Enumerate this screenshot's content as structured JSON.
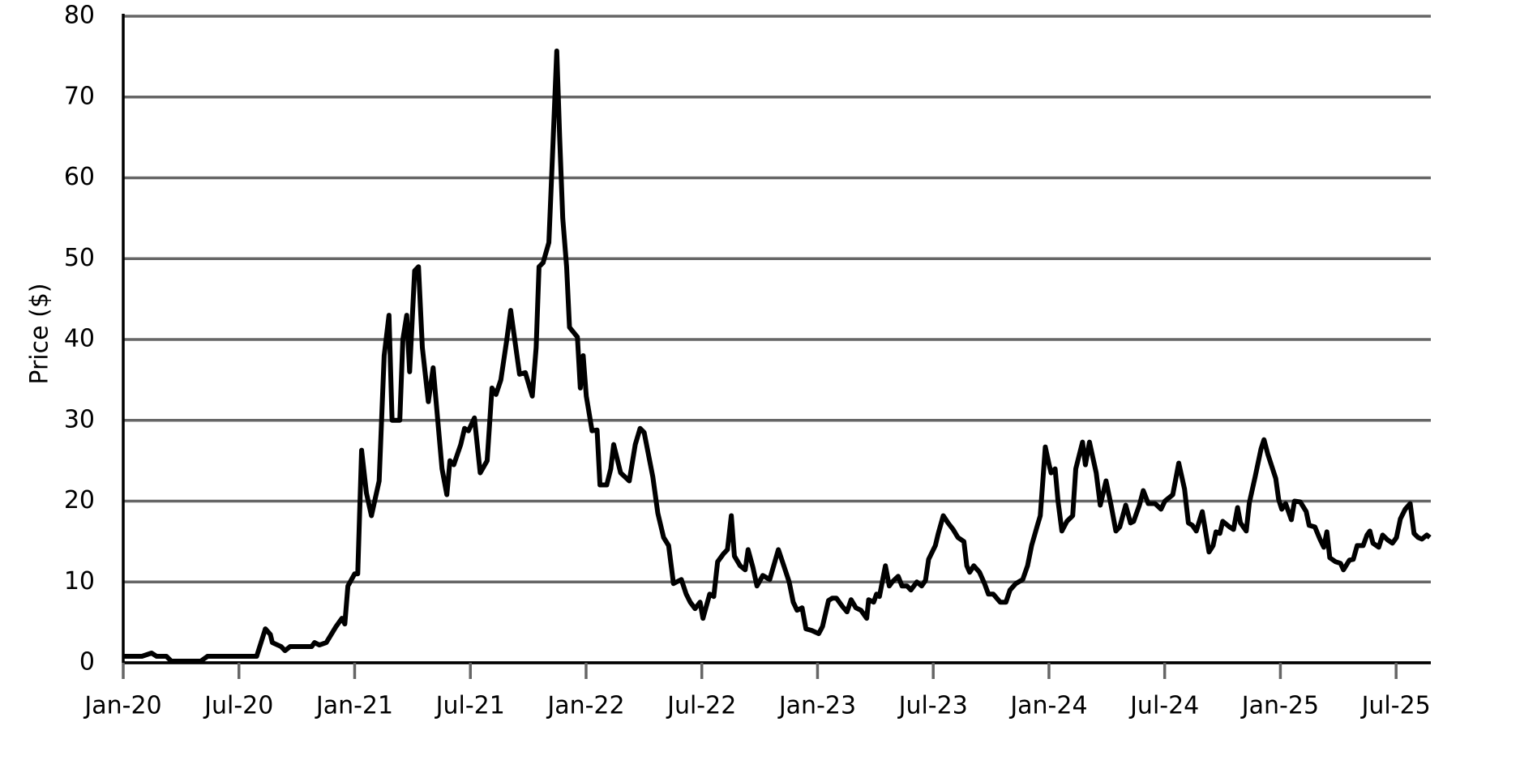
{
  "chart_data": {
    "type": "line",
    "y_label": "Price ($)",
    "xlim": [
      0,
      67.8
    ],
    "ylim": [
      0,
      80
    ],
    "xticks": [
      {
        "value": 0,
        "label": "Jan-20"
      },
      {
        "value": 6,
        "label": "Jul-20"
      },
      {
        "value": 12,
        "label": "Jan-21"
      },
      {
        "value": 18,
        "label": "Jul-21"
      },
      {
        "value": 24,
        "label": "Jan-22"
      },
      {
        "value": 30,
        "label": "Jul-22"
      },
      {
        "value": 36,
        "label": "Jan-23"
      },
      {
        "value": 42,
        "label": "Jul-23"
      },
      {
        "value": 48,
        "label": "Jan-24"
      },
      {
        "value": 54,
        "label": "Jul-24"
      },
      {
        "value": 60,
        "label": "Jan-25"
      },
      {
        "value": 66,
        "label": "Jul-25"
      }
    ],
    "yticks": [
      0,
      10,
      20,
      30,
      40,
      50,
      60,
      70,
      80
    ],
    "grid": true,
    "x": [
      0,
      0.97,
      1.47,
      1.73,
      2.24,
      2.49,
      4.02,
      4.37,
      6.92,
      7.37,
      7.63,
      7.73,
      8.19,
      8.39,
      8.65,
      9.77,
      9.92,
      10.17,
      10.53,
      11.04,
      11.34,
      11.49,
      11.65,
      12.0,
      12.16,
      12.36,
      12.61,
      12.87,
      13.27,
      13.53,
      13.78,
      13.94,
      14.34,
      14.5,
      14.7,
      14.85,
      15.11,
      15.31,
      15.51,
      15.82,
      16.07,
      16.53,
      16.78,
      16.94,
      17.14,
      17.5,
      17.7,
      17.9,
      18.21,
      18.51,
      18.87,
      19.12,
      19.33,
      19.58,
      19.89,
      20.09,
      20.55,
      20.85,
      21.21,
      21.41,
      21.56,
      21.77,
      22.07,
      22.28,
      22.48,
      22.63,
      22.79,
      22.99,
      23.14,
      23.55,
      23.7,
      23.85,
      24.01,
      24.31,
      24.57,
      24.72,
      25.07,
      25.28,
      25.43,
      25.79,
      26.24,
      26.55,
      26.8,
      27.01,
      27.46,
      27.72,
      28.02,
      28.28,
      28.43,
      28.53,
      28.94,
      29.19,
      29.4,
      29.65,
      29.91,
      30.06,
      30.41,
      30.62,
      30.82,
      31.13,
      31.33,
      31.53,
      31.69,
      31.99,
      32.25,
      32.4,
      32.65,
      32.86,
      33.16,
      33.52,
      33.97,
      34.28,
      34.53,
      34.74,
      34.94,
      35.2,
      35.4,
      35.7,
      36.06,
      36.26,
      36.57,
      36.77,
      36.98,
      37.28,
      37.53,
      37.74,
      37.99,
      38.25,
      38.55,
      38.65,
      38.91,
      39.06,
      39.21,
      39.52,
      39.72,
      39.87,
      40.18,
      40.38,
      40.64,
      40.84,
      41.15,
      41.4,
      41.6,
      41.76,
      42.11,
      42.26,
      42.52,
      42.77,
      43.03,
      43.28,
      43.59,
      43.74,
      43.89,
      44.1,
      44.4,
      44.66,
      44.86,
      45.11,
      45.47,
      45.77,
      45.98,
      46.28,
      46.64,
      46.89,
      47.1,
      47.4,
      47.55,
      47.81,
      48.01,
      48.11,
      48.32,
      48.47,
      48.67,
      48.93,
      49.23,
      49.39,
      49.74,
      49.89,
      50.1,
      50.45,
      50.66,
      50.96,
      51.22,
      51.47,
      51.67,
      51.98,
      52.23,
      52.39,
      52.69,
      52.89,
      53.15,
      53.5,
      53.81,
      54.01,
      54.42,
      54.73,
      55.03,
      55.23,
      55.44,
      55.64,
      55.95,
      56.3,
      56.51,
      56.66,
      56.86,
      57.01,
      57.37,
      57.57,
      57.78,
      57.93,
      58.23,
      58.39,
      58.69,
      59.0,
      59.15,
      59.35,
      59.76,
      59.91,
      60.07,
      60.27,
      60.57,
      60.73,
      61.03,
      61.34,
      61.49,
      61.79,
      62.05,
      62.25,
      62.41,
      62.56,
      62.86,
      63.12,
      63.27,
      63.58,
      63.78,
      63.98,
      64.29,
      64.49,
      64.64,
      64.8,
      65.1,
      65.3,
      65.56,
      65.81,
      66.02,
      66.22,
      66.47,
      66.73,
      66.93,
      67.14,
      67.34,
      67.59,
      67.75
    ],
    "series": [
      {
        "color": "#000000",
        "values": [
          0.8,
          0.8,
          1.2,
          0.8,
          0.8,
          0.2,
          0.2,
          0.8,
          0.8,
          4.2,
          3.5,
          2.5,
          2.0,
          1.5,
          2.0,
          2.0,
          2.5,
          2.2,
          2.5,
          4.5,
          5.5,
          4.8,
          9.5,
          11,
          11,
          26.3,
          21,
          18.2,
          22.5,
          38,
          43,
          30,
          30,
          40,
          43,
          36,
          48.5,
          49,
          39,
          32.3,
          36.5,
          24,
          20.8,
          25,
          24.5,
          27,
          29,
          28.7,
          30.3,
          23.5,
          25,
          34,
          33.2,
          35,
          40,
          43.6,
          35.7,
          35.9,
          33,
          39,
          49,
          49.5,
          52,
          64,
          75.7,
          65,
          55,
          49,
          41.5,
          40.3,
          34,
          38,
          33,
          28.7,
          28.8,
          22,
          22,
          24,
          27,
          23.5,
          22.5,
          27,
          29,
          28.5,
          23,
          18.5,
          15.5,
          14.5,
          11.7,
          9.8,
          10.3,
          8.5,
          7.5,
          6.7,
          7.5,
          5.5,
          8.5,
          8.2,
          12.5,
          13.5,
          14,
          18.2,
          13.2,
          12,
          11.5,
          14,
          11.8,
          9.5,
          10.8,
          10.3,
          14,
          11.8,
          10,
          7.5,
          6.5,
          6.8,
          4.2,
          4,
          3.6,
          4.5,
          7.7,
          8,
          8,
          7,
          6.3,
          7.8,
          6.8,
          6.5,
          5.5,
          7.8,
          7.5,
          8.5,
          8.2,
          12,
          9.5,
          10,
          10.7,
          9.5,
          9.5,
          9,
          10,
          9.5,
          10.2,
          12.8,
          14.5,
          16,
          18.2,
          17.3,
          16.5,
          15.5,
          15,
          12,
          11.2,
          12,
          11.2,
          9.8,
          8.5,
          8.5,
          7.5,
          7.5,
          9,
          9.8,
          10.3,
          12,
          14.5,
          17,
          18.2,
          26.7,
          24.5,
          23.5,
          24,
          20,
          16.3,
          17.5,
          18.2,
          24,
          27.3,
          24.5,
          27.3,
          23.5,
          19.5,
          22.5,
          19.5,
          16.3,
          16.8,
          19.5,
          17.3,
          17.5,
          19.5,
          21.3,
          19.7,
          19.7,
          19,
          20,
          20.8,
          24.7,
          21.5,
          17.3,
          17,
          16.3,
          18.7,
          13.7,
          14.5,
          16.2,
          16,
          17.5,
          16.8,
          16.5,
          19.2,
          17.3,
          16.3,
          19.8,
          23,
          26.5,
          27.6,
          25.8,
          22.8,
          20.2,
          19,
          19.7,
          17.7,
          20,
          19.9,
          18.7,
          17,
          16.8,
          15.3,
          14.3,
          16.2,
          13,
          12.5,
          12.3,
          11.5,
          12.7,
          12.8,
          14.5,
          14.5,
          15.8,
          16.3,
          14.8,
          14.3,
          15.8,
          15.2,
          14.8,
          15.5,
          17.8,
          19,
          19.7,
          16,
          15.5,
          15.3,
          15.8,
          15.5
        ]
      }
    ]
  }
}
